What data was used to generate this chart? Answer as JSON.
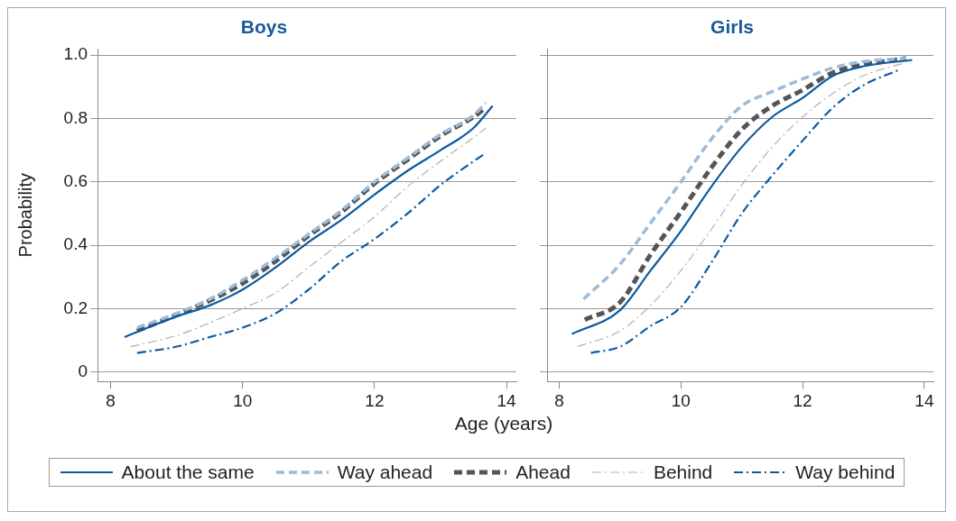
{
  "chart_data": [
    {
      "type": "line",
      "title": "Boys",
      "xlabel": "Age (years)",
      "ylabel": "Probability",
      "xlim": [
        7.8,
        14.15
      ],
      "ylim": [
        -0.03,
        1.02
      ],
      "xticks": [
        8,
        10,
        12,
        14
      ],
      "yticks": [
        {
          "value": 0,
          "label": "0"
        },
        {
          "value": 0.2,
          "label": "0.2"
        },
        {
          "value": 0.4,
          "label": "0.4"
        },
        {
          "value": 0.6,
          "label": "0.6"
        },
        {
          "value": 0.8,
          "label": "0.8"
        },
        {
          "value": 1,
          "label": "1.0"
        }
      ],
      "grid": "y",
      "legend": "bottom",
      "series": [
        {
          "name": "About the same",
          "color": "#0b5aa0",
          "line_style": "solid",
          "x": [
            8.21,
            8.5,
            9,
            9.5,
            10,
            10.5,
            11,
            11.5,
            12,
            12.5,
            13,
            13.5,
            13.79
          ],
          "values": [
            0.11,
            0.135,
            0.175,
            0.21,
            0.26,
            0.33,
            0.41,
            0.48,
            0.56,
            0.635,
            0.7,
            0.77,
            0.84
          ]
        },
        {
          "name": "Way ahead",
          "color": "#9dbbd9",
          "line_style": "dashed",
          "x": [
            8.4,
            9,
            9.5,
            10,
            10.5,
            11,
            11.5,
            12,
            12.5,
            13,
            13.5,
            13.69
          ],
          "values": [
            0.14,
            0.185,
            0.23,
            0.29,
            0.36,
            0.435,
            0.51,
            0.6,
            0.675,
            0.75,
            0.81,
            0.85
          ]
        },
        {
          "name": "Ahead",
          "color": "#555555",
          "line_style": "dashed",
          "x": [
            8.4,
            9,
            9.5,
            10,
            10.5,
            11,
            11.5,
            12,
            12.5,
            13,
            13.5,
            13.69
          ],
          "values": [
            0.13,
            0.18,
            0.225,
            0.28,
            0.35,
            0.43,
            0.505,
            0.595,
            0.67,
            0.745,
            0.805,
            0.835
          ]
        },
        {
          "name": "Behind",
          "color": "#b0b0b0",
          "line_style": "dashdot",
          "x": [
            8.3,
            9,
            9.5,
            10,
            10.5,
            11,
            11.5,
            12,
            12.5,
            13,
            13.5,
            13.69
          ],
          "values": [
            0.08,
            0.115,
            0.155,
            0.2,
            0.25,
            0.33,
            0.41,
            0.49,
            0.585,
            0.665,
            0.74,
            0.77
          ]
        },
        {
          "name": "Way behind",
          "color": "#0b5aa0",
          "line_style": "dashdot",
          "x": [
            8.4,
            9,
            9.5,
            10,
            10.5,
            11,
            11.5,
            12,
            12.5,
            13,
            13.5,
            13.68
          ],
          "values": [
            0.06,
            0.08,
            0.11,
            0.14,
            0.185,
            0.26,
            0.35,
            0.42,
            0.5,
            0.59,
            0.665,
            0.69
          ]
        }
      ]
    },
    {
      "type": "line",
      "title": "Girls",
      "xlim": [
        7.8,
        14.15
      ],
      "ylim": [
        -0.03,
        1.02
      ],
      "xticks": [
        8,
        10,
        12,
        14
      ],
      "yticks": [
        {
          "value": 0,
          "label": null
        },
        {
          "value": 0.2,
          "label": null
        },
        {
          "value": 0.4,
          "label": null
        },
        {
          "value": 0.6,
          "label": null
        },
        {
          "value": 0.8,
          "label": null
        },
        {
          "value": 1,
          "label": null
        }
      ],
      "grid": "y",
      "tick_labels": "x",
      "series": [
        {
          "color": "#0b5aa0",
          "line_style": "solid",
          "x": [
            8.21,
            9,
            9.5,
            10,
            10.5,
            11,
            11.5,
            12,
            12.5,
            13,
            13.8
          ],
          "values": [
            0.12,
            0.195,
            0.32,
            0.445,
            0.585,
            0.71,
            0.805,
            0.865,
            0.935,
            0.965,
            0.985
          ]
        },
        {
          "color": "#9dbbd9",
          "line_style": "dashed",
          "x": [
            8.4,
            9,
            9.5,
            10,
            10.5,
            11,
            11.5,
            12,
            12.5,
            13,
            13.7
          ],
          "values": [
            0.23,
            0.34,
            0.47,
            0.6,
            0.735,
            0.84,
            0.885,
            0.925,
            0.96,
            0.98,
            0.99
          ]
        },
        {
          "color": "#555555",
          "line_style": "dashed",
          "x": [
            8.42,
            9,
            9.5,
            10,
            10.5,
            11,
            11.5,
            12,
            12.5,
            13,
            13.7
          ],
          "values": [
            0.165,
            0.22,
            0.37,
            0.505,
            0.645,
            0.765,
            0.84,
            0.89,
            0.945,
            0.97,
            0.99
          ]
        },
        {
          "color": "#b0b0b0",
          "line_style": "dashdot",
          "x": [
            8.3,
            9,
            9.5,
            10,
            10.5,
            11,
            11.5,
            12,
            12.5,
            13,
            13.66
          ],
          "values": [
            0.08,
            0.13,
            0.21,
            0.32,
            0.45,
            0.59,
            0.71,
            0.805,
            0.88,
            0.935,
            0.975
          ]
        },
        {
          "color": "#0b5aa0",
          "line_style": "dashdot",
          "x": [
            8.52,
            9,
            9.5,
            10,
            10.5,
            11,
            11.5,
            12,
            12.5,
            13,
            13.6
          ],
          "values": [
            0.06,
            0.08,
            0.145,
            0.205,
            0.345,
            0.5,
            0.62,
            0.73,
            0.835,
            0.905,
            0.955
          ]
        }
      ]
    }
  ]
}
